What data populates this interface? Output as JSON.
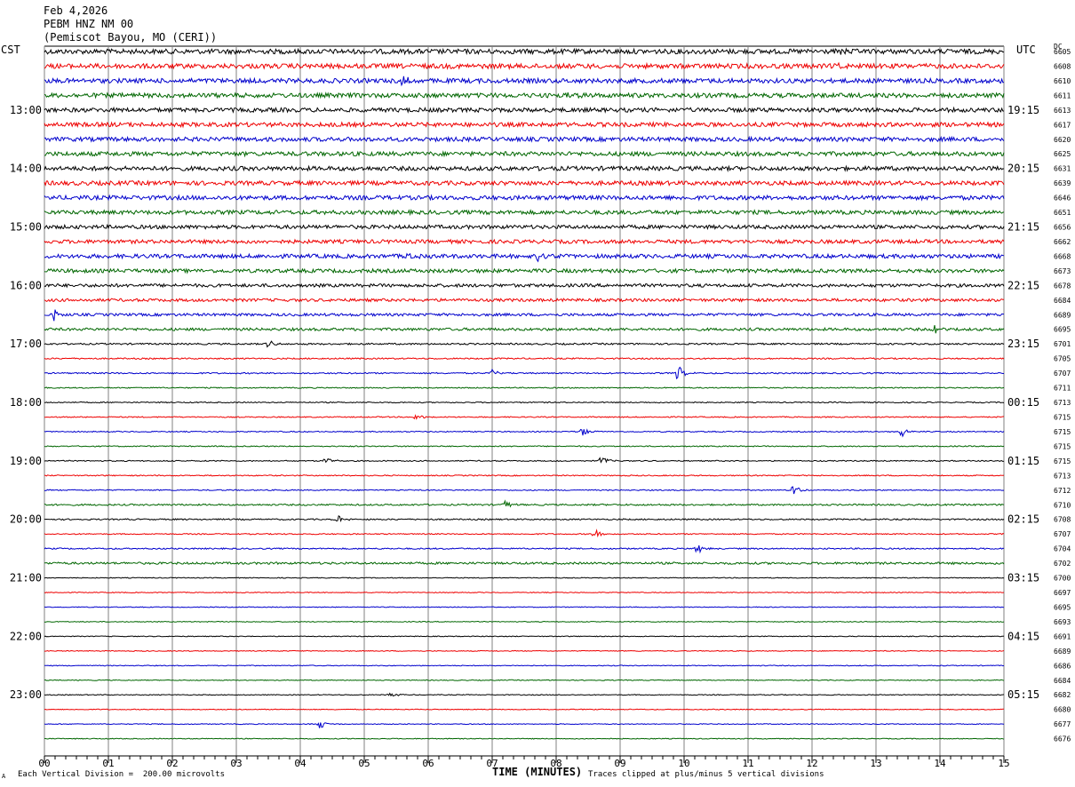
{
  "header": {
    "date": "Feb 4,2026",
    "station": "PEBM HNZ NM 00",
    "location": "(Pemiscot Bayou, MO (CERI))"
  },
  "corners": {
    "left": "CST",
    "right": "UTC",
    "dc": "DC"
  },
  "footer": {
    "scale_note": "Each Vertical Division =  200.00 microvolts",
    "clip_note": "Traces clipped at plus/minus 5 vertical divisions",
    "mark": "A"
  },
  "colors": {
    "trace_cycle": [
      "#000000",
      "#ee0000",
      "#0000cc",
      "#006600"
    ],
    "grid": "#808080"
  },
  "chart_data": {
    "type": "line",
    "title": "PEBM HNZ NM 00",
    "xlabel": "TIME (MINUTES)",
    "x_ticks": [
      "00",
      "01",
      "02",
      "03",
      "04",
      "05",
      "06",
      "07",
      "08",
      "09",
      "10",
      "11",
      "12",
      "13",
      "14",
      "15"
    ],
    "xlim": [
      0,
      15
    ],
    "left_time_labels": [
      {
        "row": 4,
        "label": "13:00"
      },
      {
        "row": 8,
        "label": "14:00"
      },
      {
        "row": 12,
        "label": "15:00"
      },
      {
        "row": 16,
        "label": "16:00"
      },
      {
        "row": 20,
        "label": "17:00"
      },
      {
        "row": 24,
        "label": "18:00"
      },
      {
        "row": 28,
        "label": "19:00"
      },
      {
        "row": 32,
        "label": "20:00"
      },
      {
        "row": 36,
        "label": "21:00"
      },
      {
        "row": 40,
        "label": "22:00"
      },
      {
        "row": 44,
        "label": "23:00"
      }
    ],
    "right_time_labels": [
      {
        "row": 4,
        "label": "19:15"
      },
      {
        "row": 8,
        "label": "20:15"
      },
      {
        "row": 12,
        "label": "21:15"
      },
      {
        "row": 16,
        "label": "22:15"
      },
      {
        "row": 20,
        "label": "23:15"
      },
      {
        "row": 24,
        "label": "00:15"
      },
      {
        "row": 28,
        "label": "01:15"
      },
      {
        "row": 32,
        "label": "02:15"
      },
      {
        "row": 36,
        "label": "03:15"
      },
      {
        "row": 40,
        "label": "04:15"
      },
      {
        "row": 44,
        "label": "05:15"
      }
    ],
    "dc_offsets": [
      6605,
      6608,
      6610,
      6611,
      6613,
      6617,
      6620,
      6625,
      6631,
      6639,
      6646,
      6651,
      6656,
      6662,
      6668,
      6673,
      6678,
      6684,
      6689,
      6695,
      6701,
      6705,
      6707,
      6711,
      6713,
      6715,
      6715,
      6715,
      6715,
      6713,
      6712,
      6710,
      6708,
      6707,
      6704,
      6702,
      6700,
      6697,
      6695,
      6693,
      6691,
      6689,
      6686,
      6684,
      6682,
      6680,
      6677,
      6676
    ],
    "trace_noise_level": [
      0.9,
      0.9,
      0.85,
      0.85,
      0.8,
      0.8,
      0.8,
      0.8,
      0.8,
      0.8,
      0.8,
      0.75,
      0.7,
      0.7,
      0.75,
      0.7,
      0.6,
      0.55,
      0.5,
      0.5,
      0.3,
      0.25,
      0.25,
      0.2,
      0.2,
      0.2,
      0.2,
      0.2,
      0.2,
      0.2,
      0.2,
      0.3,
      0.25,
      0.2,
      0.25,
      0.4,
      0.15,
      0.15,
      0.15,
      0.15,
      0.15,
      0.15,
      0.15,
      0.15,
      0.15,
      0.15,
      0.15,
      0.15
    ],
    "events": [
      {
        "row": 0,
        "minute": 12.4,
        "amp": 1.8
      },
      {
        "row": 1,
        "minute": 12.4,
        "amp": 1.5
      },
      {
        "row": 2,
        "minute": 5.6,
        "amp": 2.0
      },
      {
        "row": 3,
        "minute": 8.2,
        "amp": 1.5
      },
      {
        "row": 14,
        "minute": 7.7,
        "amp": 2.5
      },
      {
        "row": 14,
        "minute": 5.7,
        "amp": 1.5
      },
      {
        "row": 18,
        "minute": 0.15,
        "amp": 2.0
      },
      {
        "row": 19,
        "minute": 13.9,
        "amp": 2.5
      },
      {
        "row": 20,
        "minute": 3.5,
        "amp": 1.8
      },
      {
        "row": 22,
        "minute": 7.0,
        "amp": 1.5
      },
      {
        "row": 22,
        "minute": 9.9,
        "amp": 3.0
      },
      {
        "row": 25,
        "minute": 5.8,
        "amp": 1.5
      },
      {
        "row": 26,
        "minute": 8.4,
        "amp": 2.0
      },
      {
        "row": 26,
        "minute": 13.4,
        "amp": 2.0
      },
      {
        "row": 28,
        "minute": 4.4,
        "amp": 1.8
      },
      {
        "row": 28,
        "minute": 8.7,
        "amp": 2.0
      },
      {
        "row": 30,
        "minute": 11.7,
        "amp": 2.0
      },
      {
        "row": 31,
        "minute": 7.2,
        "amp": 1.8
      },
      {
        "row": 32,
        "minute": 4.6,
        "amp": 1.5
      },
      {
        "row": 33,
        "minute": 8.6,
        "amp": 2.5
      },
      {
        "row": 34,
        "minute": 10.2,
        "amp": 2.5
      },
      {
        "row": 46,
        "minute": 4.3,
        "amp": 1.8
      },
      {
        "row": 44,
        "minute": 5.4,
        "amp": 1.0
      }
    ]
  }
}
